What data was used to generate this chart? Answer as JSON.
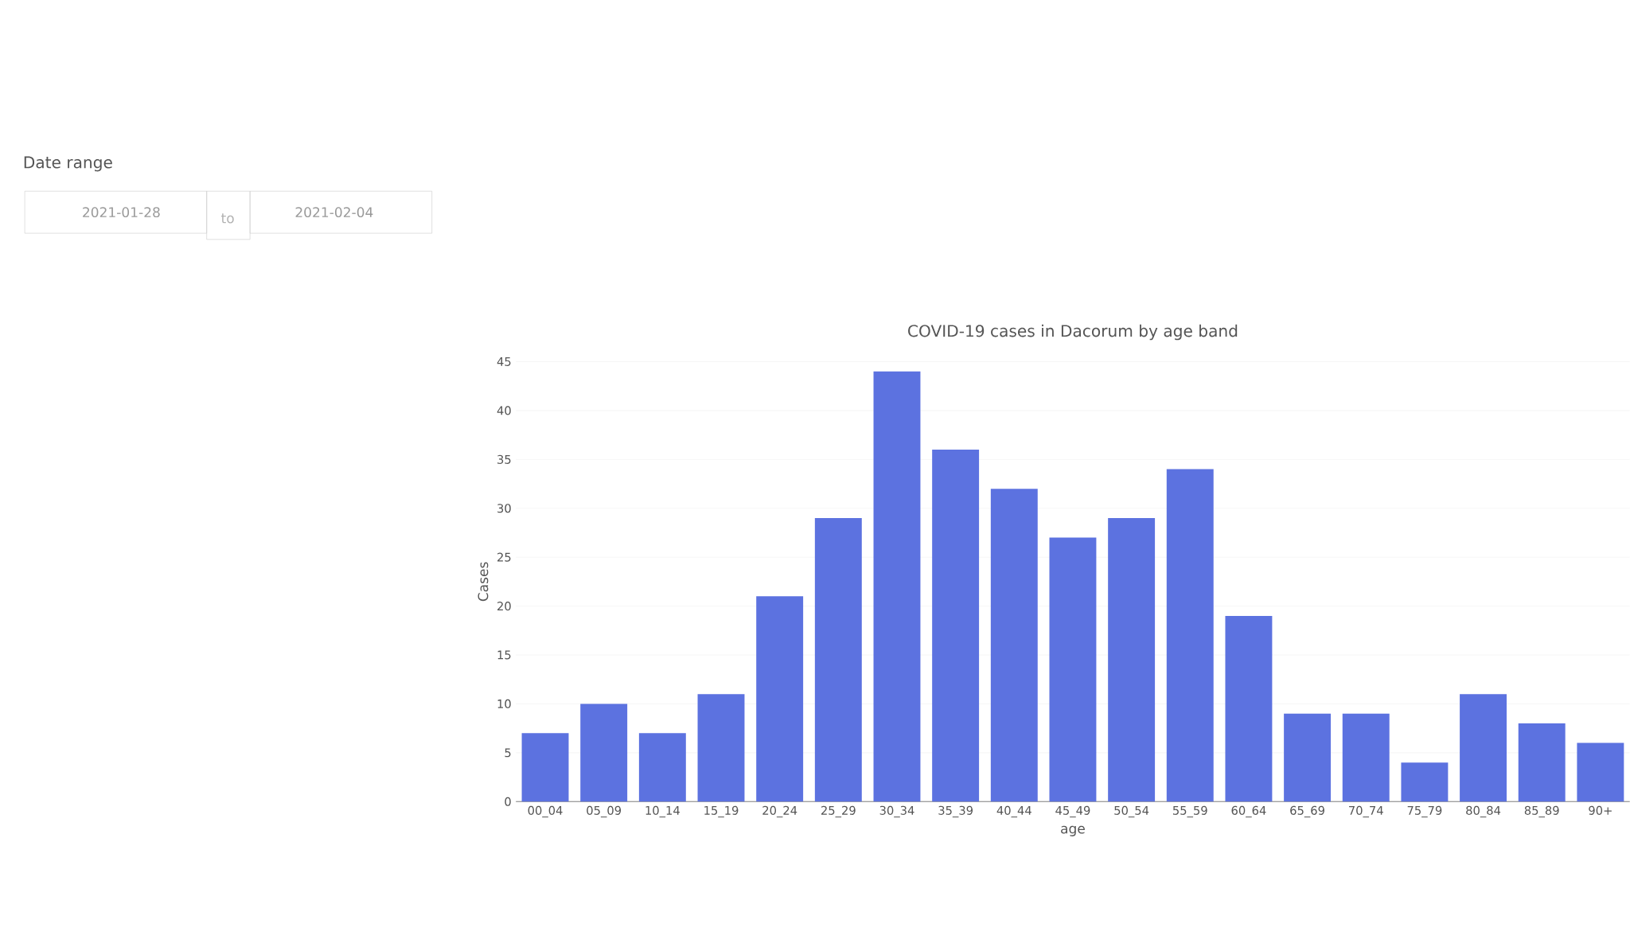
{
  "chart_data": {
    "type": "bar",
    "title": "COVID-19 cases in Dacorum by age band",
    "xlabel": "age",
    "ylabel": "Cases",
    "categories": [
      "00_04",
      "05_09",
      "10_14",
      "15_19",
      "20_24",
      "25_29",
      "30_34",
      "35_39",
      "40_44",
      "45_49",
      "50_54",
      "55_59",
      "60_64",
      "65_69",
      "70_74",
      "75_79",
      "80_84",
      "85_89",
      "90+"
    ],
    "values": [
      7,
      10,
      7,
      11,
      21,
      29,
      44,
      36,
      32,
      27,
      29,
      34,
      19,
      9,
      9,
      4,
      11,
      8,
      6
    ],
    "color": "#5c72e0",
    "ylim": [
      0,
      45
    ],
    "yticks": [
      0,
      5,
      10,
      15,
      20,
      25,
      30,
      35,
      40,
      45
    ],
    "grid": "y",
    "annotations": [
      "Date range",
      "2021-01-28",
      "to",
      "2021-02-04"
    ]
  }
}
